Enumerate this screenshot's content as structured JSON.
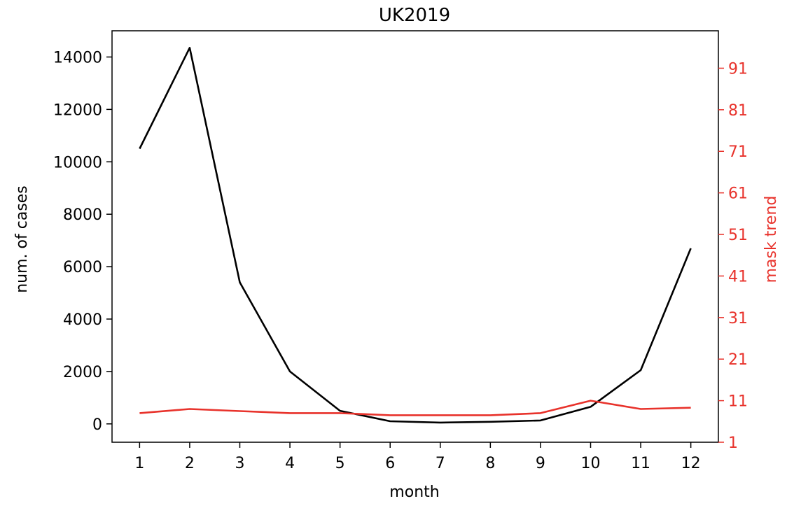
{
  "chart_data": {
    "type": "line",
    "title": "UK2019",
    "xlabel": "month",
    "ylabel": "num. of cases",
    "y2label": "mask trend",
    "x": [
      1,
      2,
      3,
      4,
      5,
      6,
      7,
      8,
      9,
      10,
      11,
      12
    ],
    "xticks": [
      "1",
      "2",
      "3",
      "4",
      "5",
      "6",
      "7",
      "8",
      "9",
      "10",
      "11",
      "12"
    ],
    "xlim": [
      0.45,
      12.55
    ],
    "ylim": [
      -700,
      15000
    ],
    "yticks": [
      0,
      2000,
      4000,
      6000,
      8000,
      10000,
      12000,
      14000
    ],
    "y2lim": [
      1,
      100
    ],
    "y2ticks": [
      1,
      11,
      21,
      31,
      41,
      51,
      61,
      71,
      81,
      91
    ],
    "grid": false,
    "colors": {
      "cases": "#000000",
      "mask": "#e8322b",
      "axis": "#000000",
      "y2axis": "#e8322b"
    },
    "series": [
      {
        "axis": "left",
        "color": "#000000",
        "values": [
          10500,
          14350,
          5400,
          2000,
          500,
          100,
          50,
          80,
          130,
          650,
          2050,
          6700
        ]
      },
      {
        "axis": "right",
        "color": "#e8322b",
        "values": [
          8,
          9,
          8.5,
          8,
          8,
          7.5,
          7.5,
          7.5,
          8,
          11,
          9,
          9.3
        ]
      }
    ]
  }
}
